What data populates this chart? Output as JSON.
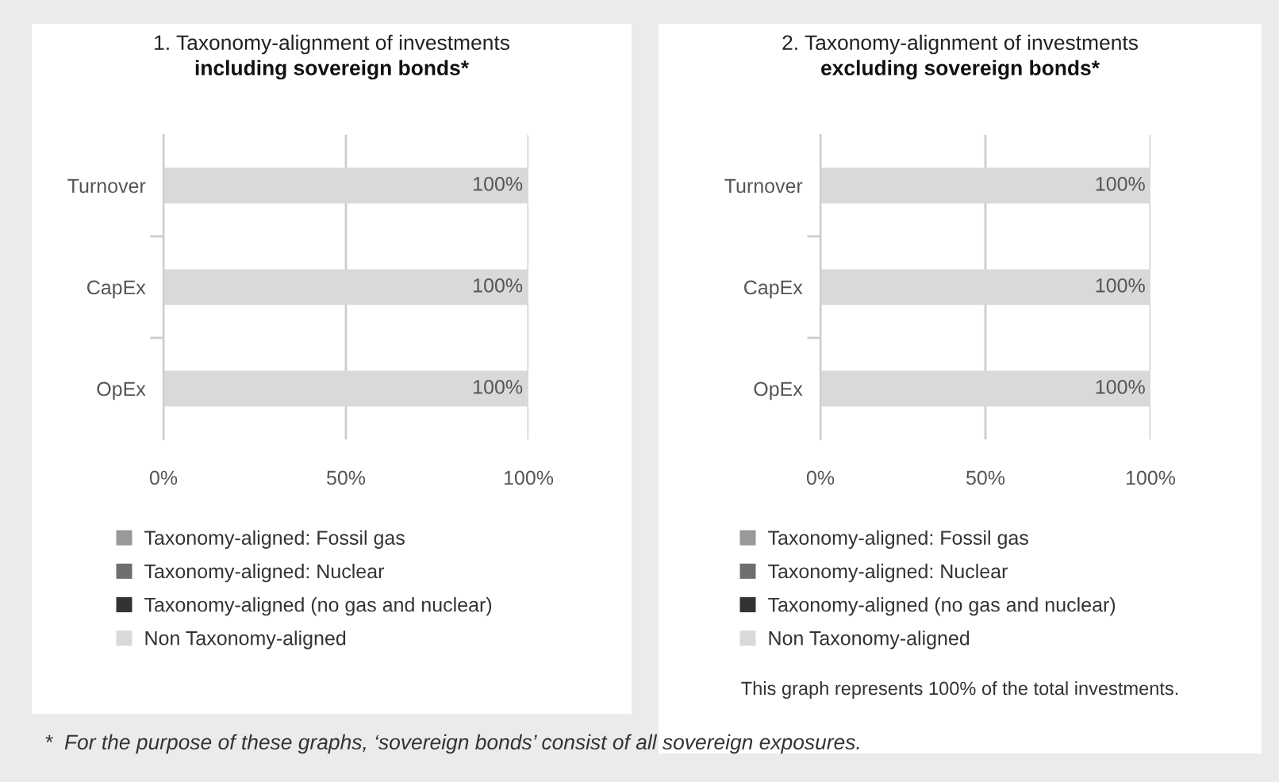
{
  "chart_data": [
    {
      "type": "bar",
      "orientation": "horizontal",
      "stacked": true,
      "title": "1. Taxonomy-alignment of investments",
      "subtitle": "including sovereign bonds*",
      "categories": [
        "Turnover",
        "CapEx",
        "OpEx"
      ],
      "series": [
        {
          "name": "Taxonomy-aligned: Fossil gas",
          "color": "#999999",
          "values": [
            0,
            0,
            0
          ]
        },
        {
          "name": "Taxonomy-aligned: Nuclear",
          "color": "#6e6e6e",
          "values": [
            0,
            0,
            0
          ]
        },
        {
          "name": "Taxonomy-aligned (no gas and nuclear)",
          "color": "#333333",
          "values": [
            0,
            0,
            0
          ]
        },
        {
          "name": "Non Taxonomy-aligned",
          "color": "#d9d9d9",
          "values": [
            100,
            100,
            100
          ],
          "value_labels": [
            "100%",
            "100%",
            "100%"
          ]
        }
      ],
      "xlim": [
        0,
        100
      ],
      "xticks": [
        {
          "value": 0,
          "label": "0%"
        },
        {
          "value": 50,
          "label": "50%"
        },
        {
          "value": 100,
          "label": "100%"
        }
      ],
      "grid": "x",
      "legend": "bottom",
      "annotations": [
        "*  For the purpose of these graphs, ‘sovereign bonds’ consist of all sovereign exposures."
      ]
    },
    {
      "type": "bar",
      "orientation": "horizontal",
      "stacked": true,
      "title": "2. Taxonomy-alignment of investments",
      "subtitle": "excluding sovereign bonds*",
      "categories": [
        "Turnover",
        "CapEx",
        "OpEx"
      ],
      "series": [
        {
          "name": "Taxonomy-aligned: Fossil gas",
          "color": "#999999",
          "values": [
            0,
            0,
            0
          ]
        },
        {
          "name": "Taxonomy-aligned: Nuclear",
          "color": "#6e6e6e",
          "values": [
            0,
            0,
            0
          ]
        },
        {
          "name": "Taxonomy-aligned (no gas and nuclear)",
          "color": "#333333",
          "values": [
            0,
            0,
            0
          ]
        },
        {
          "name": "Non Taxonomy-aligned",
          "color": "#d9d9d9",
          "values": [
            100,
            100,
            100
          ],
          "value_labels": [
            "100%",
            "100%",
            "100%"
          ]
        }
      ],
      "xlim": [
        0,
        100
      ],
      "xticks": [
        {
          "value": 0,
          "label": "0%"
        },
        {
          "value": 50,
          "label": "50%"
        },
        {
          "value": 100,
          "label": "100%"
        }
      ],
      "grid": "x",
      "legend": "bottom",
      "annotations": [
        "This graph represents 100% of the total investments."
      ]
    }
  ]
}
